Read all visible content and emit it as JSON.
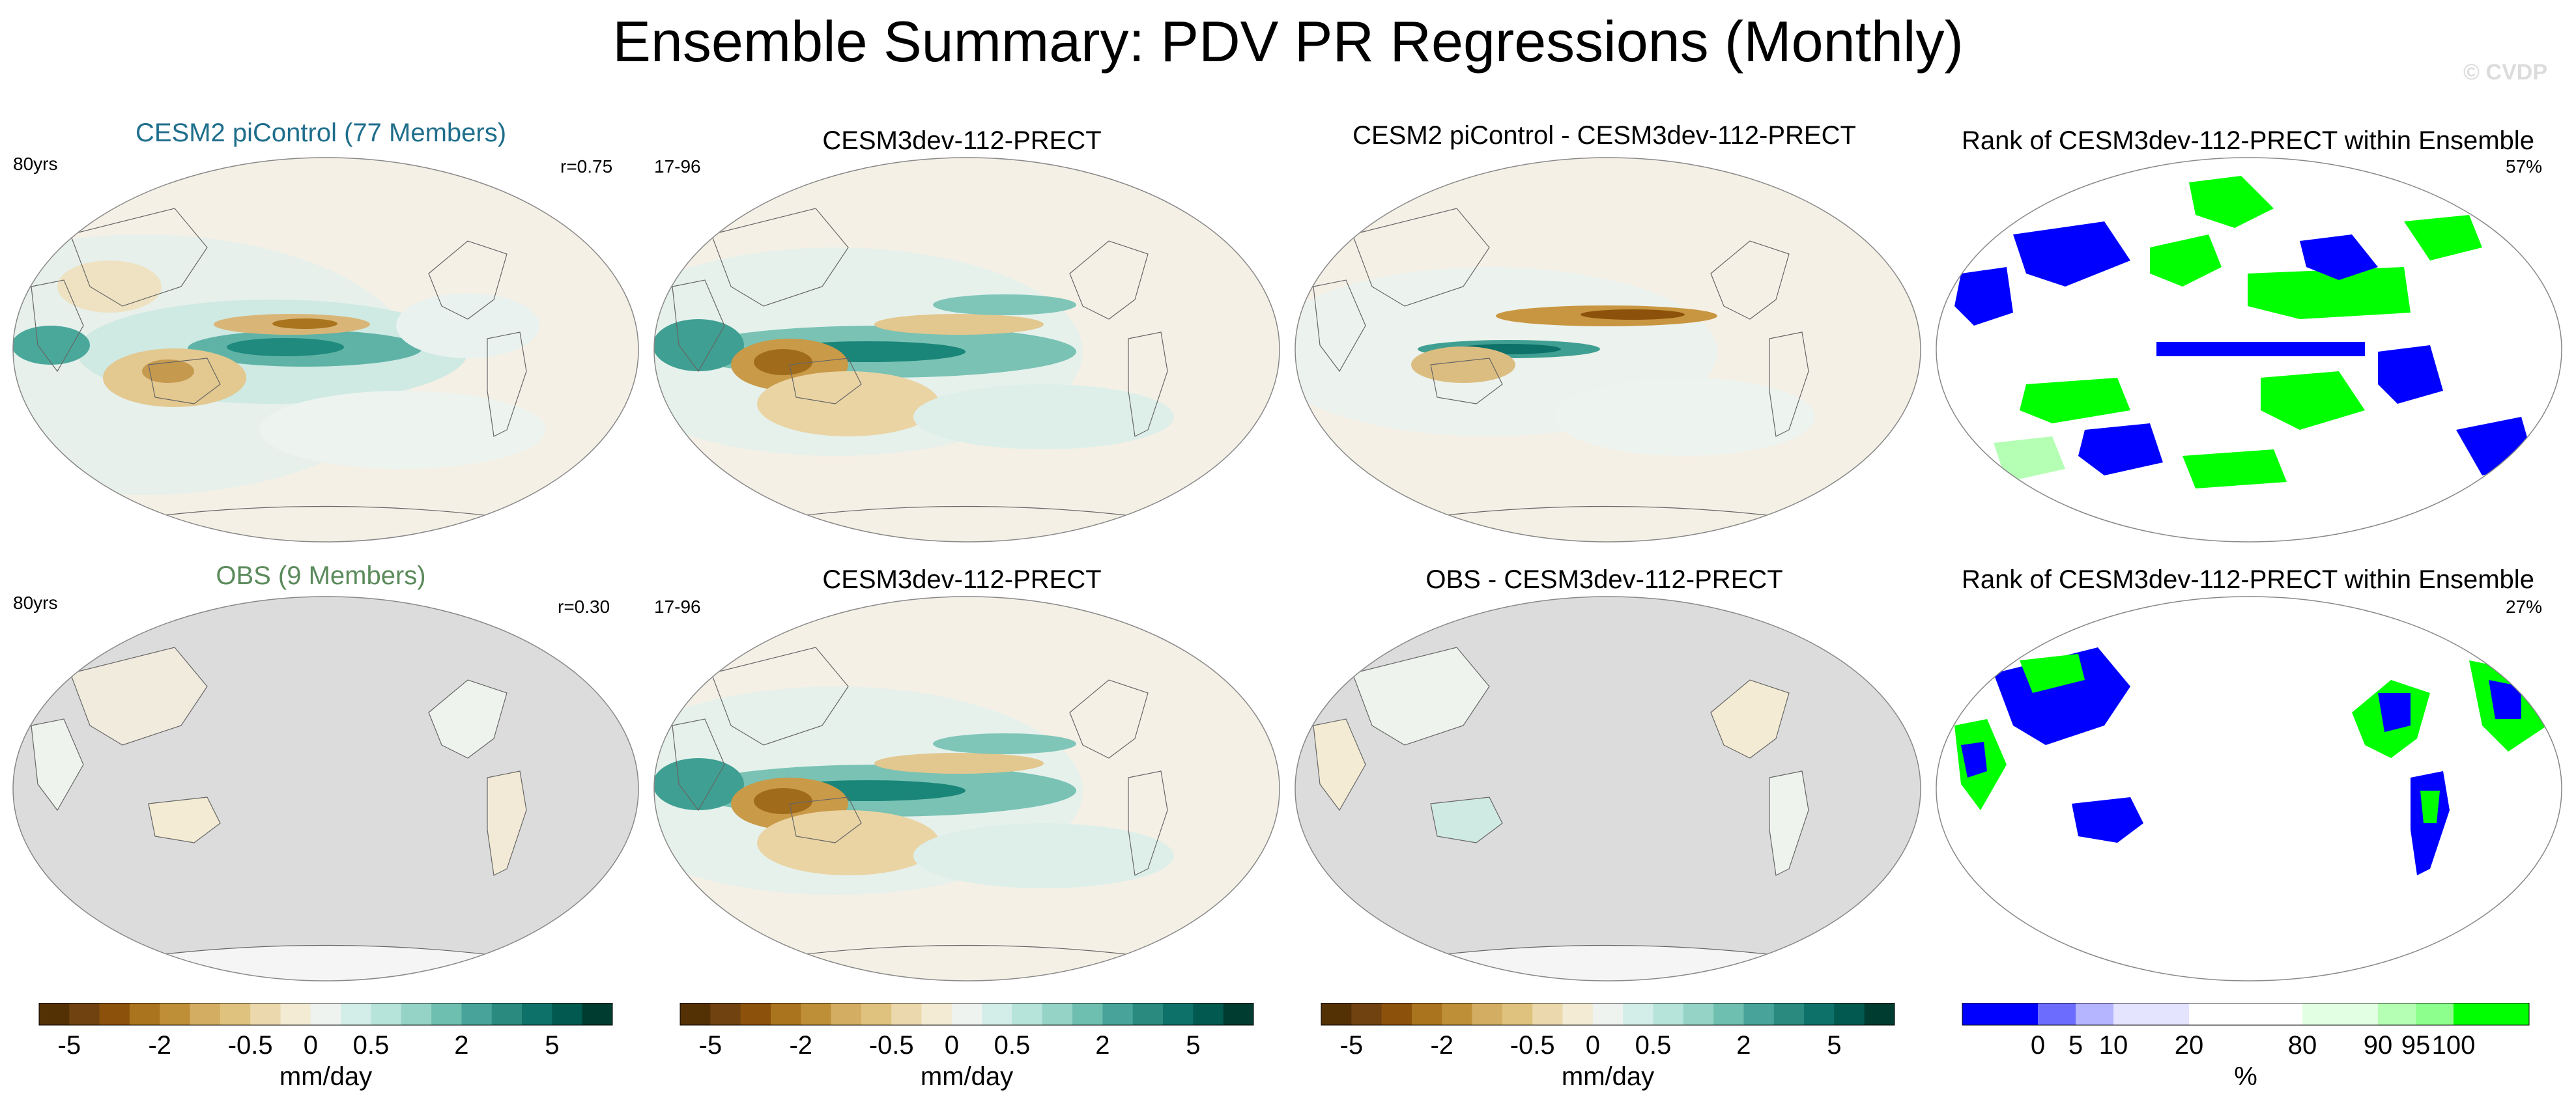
{
  "title": "Ensemble Summary: PDV PR Regressions (Monthly)",
  "copyright": "© CVDP",
  "panels": {
    "p1": {
      "title": "CESM2 piControl (77 Members)",
      "left": "80yrs",
      "right": "r=0.75"
    },
    "p2": {
      "title": "CESM3dev-112-PRECT",
      "left": "17-96",
      "right": ""
    },
    "p3": {
      "title": "CESM2 piControl - CESM3dev-112-PRECT",
      "left": "",
      "right": ""
    },
    "p4": {
      "title": "Rank of CESM3dev-112-PRECT within Ensemble",
      "left": "",
      "right": "57%"
    },
    "p5": {
      "title": "OBS (9 Members)",
      "left": "80yrs",
      "right": "r=0.30"
    },
    "p6": {
      "title": "CESM3dev-112-PRECT",
      "left": "17-96",
      "right": ""
    },
    "p7": {
      "title": "OBS - CESM3dev-112-PRECT",
      "left": "",
      "right": ""
    },
    "p8": {
      "title": "Rank of CESM3dev-112-PRECT within Ensemble",
      "left": "",
      "right": "27%"
    }
  },
  "colors": {
    "title_model": "#1f6e8c",
    "title_obs": "#5b8a5b",
    "brbg": [
      "#543005",
      "#6f4210",
      "#8c510a",
      "#a9741d",
      "#bf8f38",
      "#d3ae62",
      "#dfc27d",
      "#ebd9ad",
      "#f3ebd3",
      "#eef3ef",
      "#d3ede8",
      "#b6e3da",
      "#95d3c7",
      "#6fbfb0",
      "#48a49a",
      "#2a8a80",
      "#0e7169",
      "#01594f",
      "#003c30"
    ],
    "rank": [
      "#0000ff",
      "#6c6cff",
      "#b4b4ff",
      "#e4e4ff",
      "#ffffff",
      "#e3ffe3",
      "#b5ffb5",
      "#8cff8c",
      "#00ff00"
    ],
    "land_missing": "#dcdcdc"
  },
  "chart_data": [
    {
      "type": "heatmap",
      "name": "precip-colorbar",
      "units": "mm/day",
      "levels": [
        -5,
        -4,
        -3,
        -2,
        -1.5,
        -1,
        -0.5,
        -0.25,
        0,
        0.25,
        0.5,
        1,
        1.5,
        2,
        3,
        4,
        5
      ],
      "tick_labels": [
        "-5",
        "-2",
        "-0.5",
        "0",
        "0.5",
        "2",
        "5"
      ],
      "tick_values": [
        -5,
        -2,
        -0.5,
        0,
        0.5,
        2,
        5
      ]
    },
    {
      "type": "heatmap",
      "name": "rank-colorbar",
      "units": "%",
      "levels": [
        0,
        5,
        10,
        20,
        80,
        90,
        95,
        100
      ],
      "tick_labels": [
        "0",
        "5",
        "10",
        "20",
        "80",
        "90",
        "95",
        "100"
      ]
    }
  ]
}
